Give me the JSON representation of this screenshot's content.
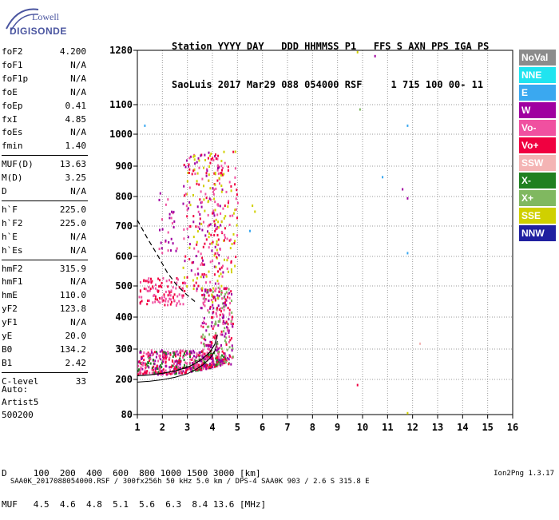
{
  "logo": {
    "line1": "Lowell",
    "line2": "DIGISONDE"
  },
  "header": {
    "line1": "Station YYYY DAY   DDD HHMMSS P1   FFS S AXN PPS IGA PS",
    "line2": "SaoLuis 2017 Mar29 088 054000 RSF     1 715 100 00- 11"
  },
  "params": [
    [
      {
        "k": "foF2",
        "v": "4.200"
      },
      {
        "k": "foF1",
        "v": "N/A"
      },
      {
        "k": "foF1p",
        "v": "N/A"
      },
      {
        "k": "foE",
        "v": "N/A"
      },
      {
        "k": "foEp",
        "v": "0.41"
      },
      {
        "k": "fxI",
        "v": "4.85"
      },
      {
        "k": "foEs",
        "v": "N/A"
      },
      {
        "k": "fmin",
        "v": "1.40"
      }
    ],
    [
      {
        "k": "MUF(D)",
        "v": "13.63"
      },
      {
        "k": "M(D)",
        "v": "3.25"
      },
      {
        "k": "D",
        "v": "N/A"
      }
    ],
    [
      {
        "k": "h`F",
        "v": "225.0"
      },
      {
        "k": "h`F2",
        "v": "225.0"
      },
      {
        "k": "h`E",
        "v": "N/A"
      },
      {
        "k": "h`Es",
        "v": "N/A"
      }
    ],
    [
      {
        "k": "hmF2",
        "v": "315.9"
      },
      {
        "k": "hmF1",
        "v": "N/A"
      },
      {
        "k": "hmE",
        "v": "110.0"
      },
      {
        "k": "yF2",
        "v": "123.8"
      },
      {
        "k": "yF1",
        "v": "N/A"
      },
      {
        "k": "yE",
        "v": "20.0"
      },
      {
        "k": "B0",
        "v": "134.2"
      },
      {
        "k": "B1",
        "v": "2.42"
      }
    ],
    [
      {
        "k": "C-level",
        "v": "33"
      }
    ]
  ],
  "auto": {
    "line1": "Auto:",
    "line2": "Artist5",
    "line3": "500200"
  },
  "dmuf": {
    "d_row": "D     100  200  400  600  800 1000 1500 3000 [km]",
    "muf_row": "MUF   4.5  4.6  4.8  5.1  5.6  6.3  8.4 13.6 [MHz]"
  },
  "footer": {
    "text": "SAA0K_2017088054000.RSF / 300fx256h 50 kHz 5.0 km / DPS-4 SAA0K 903 / 2.6 S 315.8 E",
    "version": "Ion2Png 1.3.17"
  },
  "legend": [
    {
      "label": "NoVal",
      "color": "#8c8c8c"
    },
    {
      "label": "NNE",
      "color": "#20e4f0"
    },
    {
      "label": "E",
      "color": "#3aa8f0"
    },
    {
      "label": "W",
      "color": "#a000a0"
    },
    {
      "label": "Vo-",
      "color": "#f050a0"
    },
    {
      "label": "Vo+",
      "color": "#f00040"
    },
    {
      "label": "SSW",
      "color": "#f4b4b4"
    },
    {
      "label": "X-",
      "color": "#208020"
    },
    {
      "label": "X+",
      "color": "#80b860"
    },
    {
      "label": "SSE",
      "color": "#d0d000"
    },
    {
      "label": "NNW",
      "color": "#2020a0"
    }
  ],
  "chart_data": {
    "type": "scatter",
    "x_ticks": [
      1,
      2,
      3,
      4,
      5,
      6,
      7,
      8,
      9,
      10,
      11,
      12,
      13,
      14,
      15,
      16
    ],
    "y_ticks": [
      80,
      200,
      300,
      400,
      500,
      600,
      700,
      800,
      900,
      1000,
      1100,
      1280
    ],
    "xlim": [
      1,
      16
    ],
    "grid": true,
    "trace_profile": {
      "x": [
        1.0,
        1.5,
        2.0,
        2.5,
        3.0,
        3.3,
        3.6,
        3.9,
        4.1,
        4.2
      ],
      "y": [
        212,
        215,
        220,
        228,
        240,
        252,
        268,
        290,
        315,
        345
      ]
    },
    "dashed_curve": {
      "x": [
        1.0,
        1.4,
        1.8,
        2.2,
        2.6,
        3.0,
        3.3
      ],
      "y": [
        720,
        660,
        605,
        545,
        500,
        470,
        450
      ]
    },
    "clusters": [
      {
        "x": [
          1.0,
          4.5
        ],
        "y": [
          220,
          300
        ],
        "n": 520,
        "colors": [
          "#f00040",
          "#f050a0",
          "#208020",
          "#a000a0"
        ]
      },
      {
        "x": [
          3.5,
          4.8
        ],
        "y": [
          250,
          500
        ],
        "n": 260,
        "colors": [
          "#f00040",
          "#f050a0",
          "#80b860",
          "#a000a0"
        ]
      },
      {
        "x": [
          2.8,
          4.4
        ],
        "y": [
          450,
          950
        ],
        "n": 240,
        "colors": [
          "#a000a0",
          "#f050a0",
          "#d0d000",
          "#f00040"
        ]
      },
      {
        "x": [
          4.0,
          5.0
        ],
        "y": [
          550,
          950
        ],
        "n": 100,
        "colors": [
          "#d0d000",
          "#f00040",
          "#f050a0"
        ]
      },
      {
        "x": [
          1.0,
          2.9
        ],
        "y": [
          440,
          530
        ],
        "n": 110,
        "colors": [
          "#f00040",
          "#f050a0"
        ]
      },
      {
        "x": [
          1.8,
          2.6
        ],
        "y": [
          600,
          820
        ],
        "n": 30,
        "colors": [
          "#a000a0",
          "#f050a0"
        ]
      }
    ],
    "outliers": [
      {
        "x": 1.3,
        "y": 1030,
        "c": "#3aa8f0"
      },
      {
        "x": 9.8,
        "y": 1275,
        "c": "#d0d000"
      },
      {
        "x": 10.5,
        "y": 1262,
        "c": "#a000a0"
      },
      {
        "x": 9.9,
        "y": 1085,
        "c": "#80b860"
      },
      {
        "x": 11.8,
        "y": 1030,
        "c": "#3aa8f0"
      },
      {
        "x": 10.8,
        "y": 865,
        "c": "#3aa8f0"
      },
      {
        "x": 11.6,
        "y": 825,
        "c": "#a000a0"
      },
      {
        "x": 11.8,
        "y": 795,
        "c": "#a000a0"
      },
      {
        "x": 11.8,
        "y": 612,
        "c": "#3aa8f0"
      },
      {
        "x": 12.3,
        "y": 318,
        "c": "#f4b4b4"
      },
      {
        "x": 9.8,
        "y": 182,
        "c": "#f00040"
      },
      {
        "x": 11.8,
        "y": 86,
        "c": "#d0d000"
      },
      {
        "x": 5.5,
        "y": 685,
        "c": "#3aa8f0"
      },
      {
        "x": 5.6,
        "y": 770,
        "c": "#d0d000"
      },
      {
        "x": 5.7,
        "y": 750,
        "c": "#d0d000"
      }
    ]
  }
}
